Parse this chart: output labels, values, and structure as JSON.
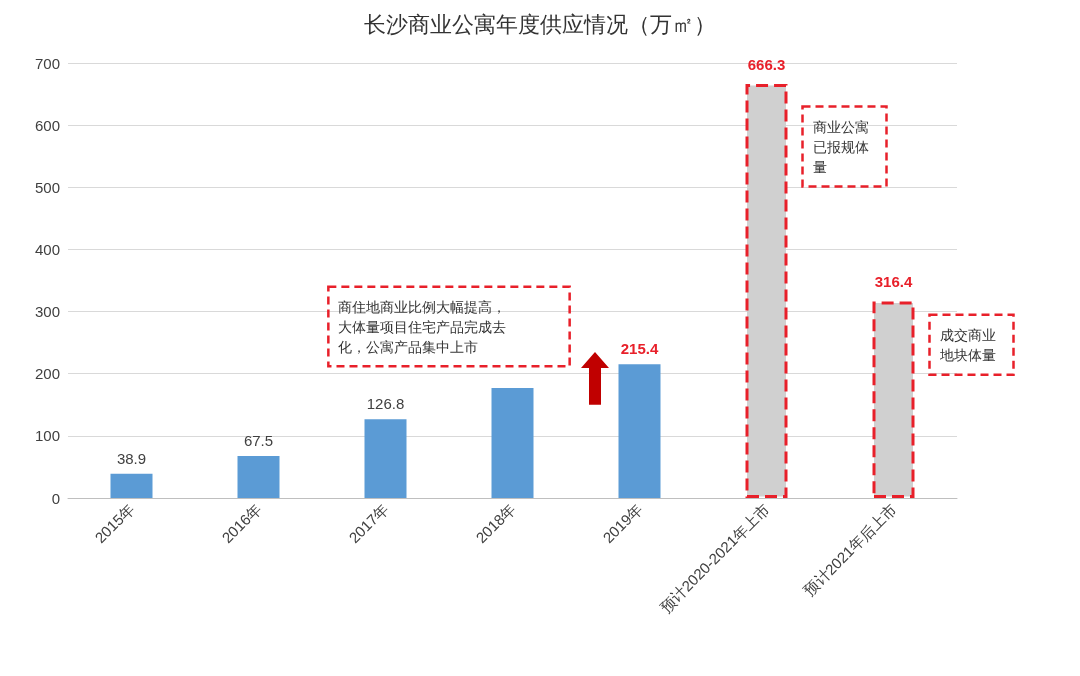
{
  "chart_data": {
    "type": "bar",
    "title": "长沙商业公寓年度供应情况（万㎡）",
    "categories": [
      "2015年",
      "2016年",
      "2017年",
      "2018年",
      "2019年",
      "预计2020-2021年上市",
      "预计2021年后上市"
    ],
    "values": [
      38.9,
      67.5,
      126.8,
      177,
      215.4,
      666.3,
      316.4
    ],
    "colors": [
      "#5b9bd5",
      "#5b9bd5",
      "#5b9bd5",
      "#5b9bd5",
      "#5b9bd5",
      "#d0d0d0",
      "#d0d0d0"
    ],
    "value_labels": [
      "38.9",
      "67.5",
      "126.8",
      null,
      "215.4",
      "666.3",
      "316.4"
    ],
    "ylim": [
      0,
      700
    ],
    "yticks": [
      0,
      100,
      200,
      300,
      400,
      500,
      600,
      700
    ],
    "grid": "y",
    "annotations": [
      "商住地商业比例大幅提高，大体量项目住宅产品完成去化，公寓产品集中上市",
      "商业公寓已报规体量",
      "成交商业地块体量"
    ]
  }
}
